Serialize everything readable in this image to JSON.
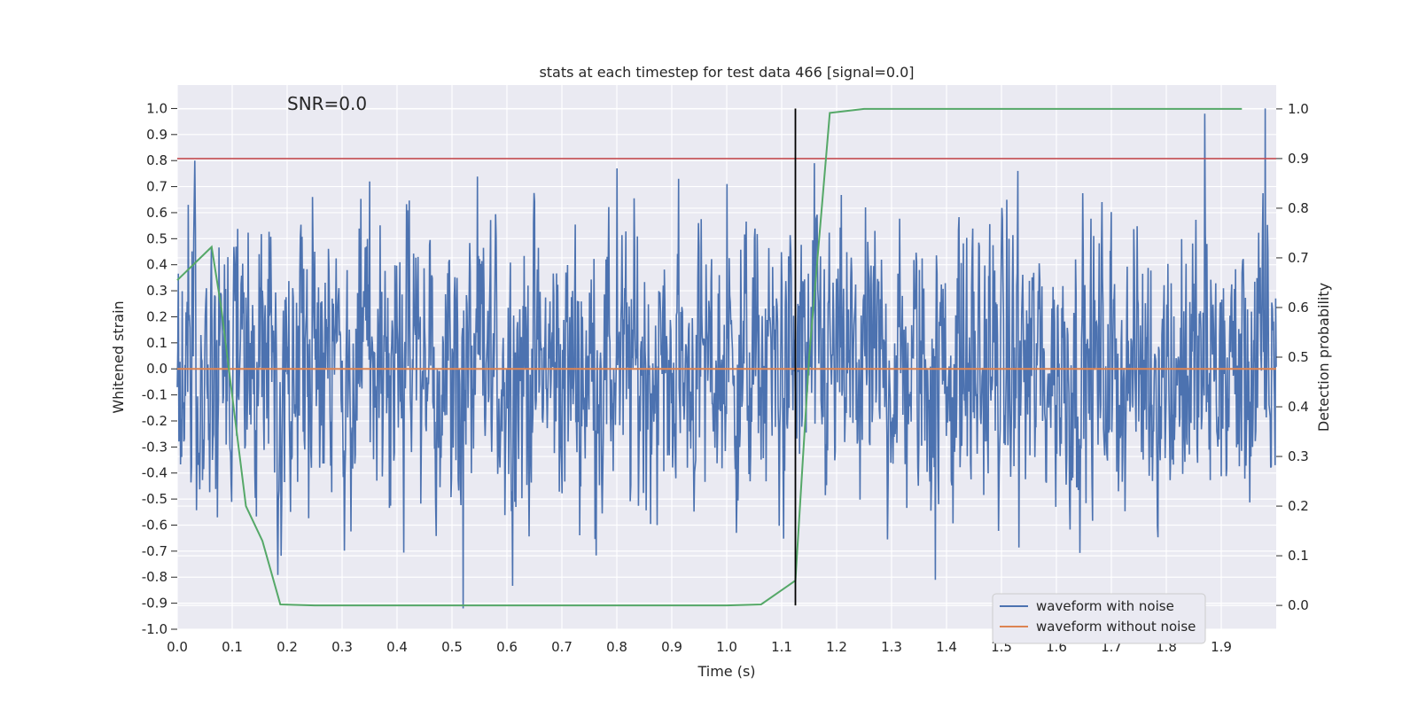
{
  "chart_data": {
    "type": "line",
    "title": "stats at each timestep for test data 466 [signal=0.0]",
    "annotation": "SNR=0.0",
    "xlabel": "Time (s)",
    "ylabel": "Whitened strain",
    "y2label": "Detection probability",
    "xlim": [
      0.0,
      2.0
    ],
    "ylim": [
      -1.0,
      1.09
    ],
    "y2lim": [
      -0.048,
      1.048
    ],
    "x_ticks": [
      "0.0",
      "0.1",
      "0.2",
      "0.3",
      "0.4",
      "0.5",
      "0.6",
      "0.7",
      "0.8",
      "0.9",
      "1.0",
      "1.1",
      "1.2",
      "1.3",
      "1.4",
      "1.5",
      "1.6",
      "1.7",
      "1.8",
      "1.9"
    ],
    "y_ticks": [
      "1.0",
      "0.9",
      "0.8",
      "0.7",
      "0.6",
      "0.5",
      "0.4",
      "0.3",
      "0.2",
      "0.1",
      "0.0",
      "-0.1",
      "-0.2",
      "-0.3",
      "-0.4",
      "-0.5",
      "-0.6",
      "-0.7",
      "-0.8",
      "-0.9",
      "-1.0"
    ],
    "y2_ticks": [
      "1.0",
      "0.9",
      "0.8",
      "0.7",
      "0.6",
      "0.5",
      "0.4",
      "0.3",
      "0.2",
      "0.1",
      "0.0"
    ],
    "grid": true,
    "legend_position": "lower-right",
    "colors": {
      "waveform_with_noise": "#4c72b0",
      "waveform_without_noise": "#dd8452",
      "detection_probability": "#55a868",
      "threshold": "#c44e52",
      "marker": "#000000",
      "plot_background": "#eaeaf2",
      "grid": "#ffffff"
    },
    "series": [
      {
        "name": "waveform with noise",
        "axis": "left",
        "description_of_shape": "dense noise, mostly within -0.5..0.6, peaks near 1.0 at t≈1.87 and t≈1.98, minimum ≈-0.92 at t≈0.52",
        "samples": 2000,
        "range": [
          -0.92,
          1.0
        ],
        "extrema": [
          {
            "x": 0.02,
            "y": 0.63
          },
          {
            "x": 0.25,
            "y": 0.45
          },
          {
            "x": 0.35,
            "y": 0.72
          },
          {
            "x": 0.52,
            "y": -0.92
          },
          {
            "x": 0.8,
            "y": 0.77
          },
          {
            "x": 1.0,
            "y": 0.71
          },
          {
            "x": 1.16,
            "y": 0.79
          },
          {
            "x": 1.38,
            "y": -0.81
          },
          {
            "x": 1.53,
            "y": 0.76
          },
          {
            "x": 1.87,
            "y": 0.98
          },
          {
            "x": 1.98,
            "y": 1.0
          }
        ]
      },
      {
        "name": "waveform without noise",
        "axis": "left",
        "x": [
          0.0,
          2.0
        ],
        "y": [
          0.0,
          0.0
        ]
      },
      {
        "axis": "right",
        "x": [
          0.0,
          0.0625,
          0.08,
          0.125,
          0.155,
          0.1875,
          0.25,
          0.3125,
          0.5,
          0.75,
          1.0,
          1.0625,
          1.125,
          1.15,
          1.1875,
          1.25,
          1.5,
          1.75,
          1.9375
        ],
        "y": [
          0.655,
          0.722,
          0.6,
          0.2,
          0.13,
          0.002,
          0.0,
          0.0,
          0.0,
          0.0,
          0.0,
          0.002,
          0.05,
          0.5,
          0.992,
          1.0,
          1.0,
          1.0,
          1.0
        ]
      }
    ],
    "reference_lines": {
      "threshold_probability": 0.9,
      "marker_time": 1.125
    }
  },
  "legend": {
    "items": [
      {
        "label": "waveform with noise",
        "color": "#4c72b0"
      },
      {
        "label": "waveform without noise",
        "color": "#dd8452"
      }
    ]
  }
}
